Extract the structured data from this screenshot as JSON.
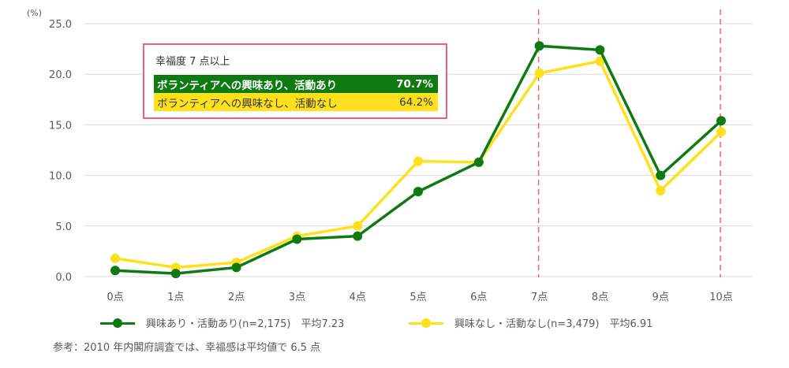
{
  "chart_data": {
    "type": "line",
    "title": "",
    "xlabel": "",
    "ylabel": "(%)",
    "ylim": [
      0,
      25
    ],
    "yticks": [
      "0.0",
      "5.0",
      "10.0",
      "15.0",
      "20.0",
      "25.0"
    ],
    "categories": [
      "0点",
      "1点",
      "2点",
      "3点",
      "4点",
      "5点",
      "6点",
      "7点",
      "8点",
      "9点",
      "10点"
    ],
    "grid": true,
    "legend_position": "bottom",
    "series": [
      {
        "name": "興味あり・活動あり(n=2,175)　平均7.23",
        "color": "#0f7a12",
        "values": [
          0.6,
          0.3,
          0.9,
          3.7,
          4.0,
          8.4,
          11.3,
          22.8,
          22.4,
          10.0,
          15.4
        ]
      },
      {
        "name": "興味なし・活動なし(n=3,479)　平均6.91",
        "color": "#ffe01c",
        "values": [
          1.8,
          0.9,
          1.4,
          4.0,
          5.0,
          11.4,
          11.3,
          20.1,
          21.3,
          8.5,
          14.3
        ]
      }
    ],
    "annotations": {
      "dashed_vertical_lines_at": [
        "7点",
        "10点"
      ],
      "dashed_line_color": "#f0607a",
      "callout": {
        "title": "幸福度 7 点以上",
        "rows": [
          {
            "label": "ボランティアへの興味あり、活動あり",
            "value": "70.7%"
          },
          {
            "label": "ボランティアへの興味なし、活動なし",
            "value": "64.2%"
          }
        ]
      },
      "note": "参考：2010 年内閣府調査では、幸福感は平均値で 6.5 点"
    }
  },
  "axis": {
    "unit": "(%)"
  },
  "callout": {
    "title": "幸福度 7 点以上",
    "row1_label": "ボランティアへの興味あり、活動あり",
    "row1_value": "70.7%",
    "row2_label": "ボランティアへの興味なし、活動なし",
    "row2_value": "64.2%"
  },
  "legend": {
    "series1": "興味あり・活動あり(n=2,175)　平均7.23",
    "series2": "興味なし・活動なし(n=3,479)　平均6.91"
  },
  "note": "参考：2010 年内閣府調査では、幸福感は平均値で 6.5 点",
  "colors": {
    "green": "#0f7a12",
    "yellow": "#ffe01c",
    "dashed": "#f0607a",
    "grid": "#d9d9d9"
  }
}
